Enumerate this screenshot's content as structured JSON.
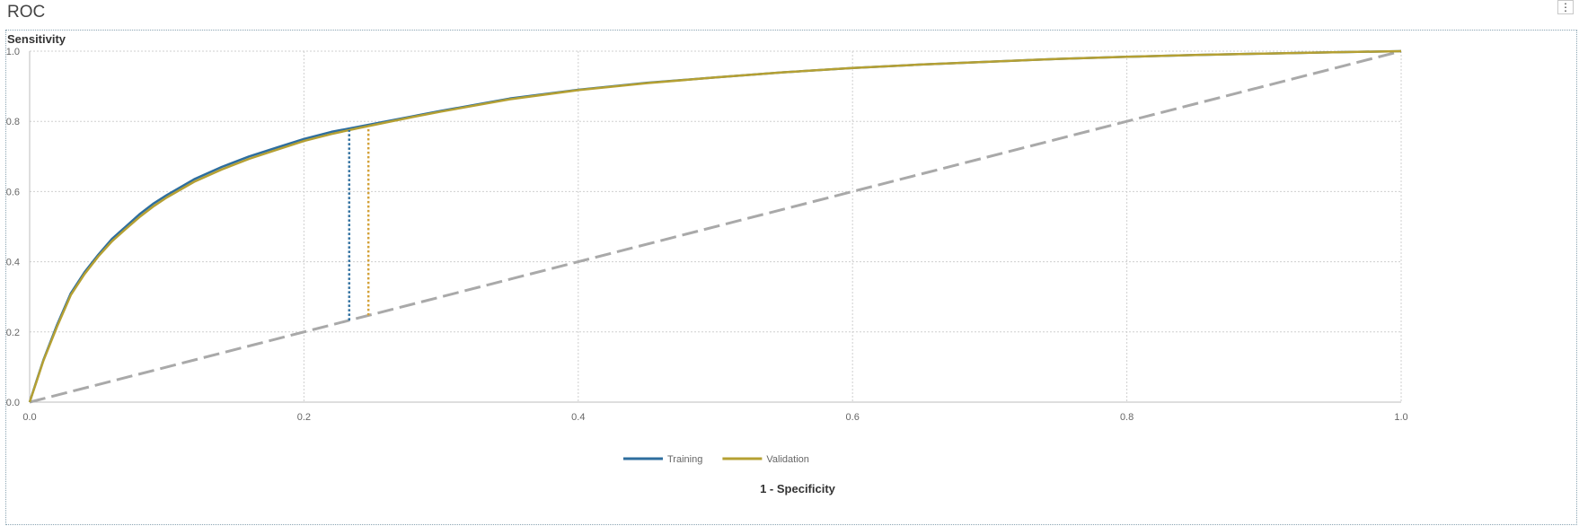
{
  "title": "ROC",
  "menu_icon": "vertical-ellipsis-icon",
  "chart_data": {
    "type": "line",
    "title": "ROC",
    "xlabel": "1 - Specificity",
    "ylabel": "Sensitivity",
    "xlim": [
      0.0,
      1.0
    ],
    "ylim": [
      0.0,
      1.0
    ],
    "x_ticks": [
      "0.0",
      "0.2",
      "0.4",
      "0.6",
      "0.8",
      "1.0"
    ],
    "y_ticks": [
      "0.0",
      "0.2",
      "0.4",
      "0.6",
      "0.8",
      "1.0"
    ],
    "grid": true,
    "legend_position": "bottom-center",
    "series": [
      {
        "name": "Training",
        "color": "#2e6e9e",
        "x": [
          0.0,
          0.005,
          0.01,
          0.02,
          0.03,
          0.04,
          0.05,
          0.06,
          0.07,
          0.08,
          0.09,
          0.1,
          0.12,
          0.14,
          0.16,
          0.18,
          0.2,
          0.22,
          0.24,
          0.26,
          0.28,
          0.3,
          0.35,
          0.4,
          0.45,
          0.5,
          0.55,
          0.6,
          0.65,
          0.7,
          0.75,
          0.8,
          0.85,
          0.9,
          0.95,
          1.0
        ],
        "y": [
          0.0,
          0.06,
          0.12,
          0.22,
          0.31,
          0.37,
          0.42,
          0.465,
          0.5,
          0.535,
          0.565,
          0.59,
          0.635,
          0.67,
          0.7,
          0.725,
          0.75,
          0.77,
          0.785,
          0.8,
          0.815,
          0.83,
          0.865,
          0.89,
          0.91,
          0.925,
          0.94,
          0.952,
          0.962,
          0.97,
          0.978,
          0.984,
          0.989,
          0.993,
          0.997,
          1.0
        ]
      },
      {
        "name": "Validation",
        "color": "#b5a033",
        "x": [
          0.0,
          0.005,
          0.01,
          0.02,
          0.03,
          0.04,
          0.05,
          0.06,
          0.07,
          0.08,
          0.09,
          0.1,
          0.12,
          0.14,
          0.16,
          0.18,
          0.2,
          0.22,
          0.24,
          0.26,
          0.28,
          0.3,
          0.35,
          0.4,
          0.45,
          0.5,
          0.55,
          0.6,
          0.65,
          0.7,
          0.75,
          0.8,
          0.85,
          0.9,
          0.95,
          1.0
        ],
        "y": [
          0.0,
          0.058,
          0.118,
          0.215,
          0.305,
          0.365,
          0.415,
          0.458,
          0.493,
          0.527,
          0.557,
          0.583,
          0.628,
          0.663,
          0.693,
          0.719,
          0.744,
          0.764,
          0.781,
          0.797,
          0.813,
          0.828,
          0.863,
          0.889,
          0.909,
          0.925,
          0.94,
          0.952,
          0.962,
          0.97,
          0.978,
          0.984,
          0.989,
          0.993,
          0.997,
          1.0
        ]
      },
      {
        "name": "",
        "role": "baseline",
        "color": "#a9a9a9",
        "style": "dashed",
        "x": [
          0.0,
          1.0
        ],
        "y": [
          0.0,
          1.0
        ]
      }
    ],
    "cutoff_markers": [
      {
        "series": "Training",
        "color": "#2e6e9e",
        "x": 0.233,
        "y_from": 0.233,
        "y_to": 0.775
      },
      {
        "series": "Validation",
        "color": "#d4a23a",
        "x": 0.247,
        "y_from": 0.247,
        "y_to": 0.785
      }
    ]
  }
}
